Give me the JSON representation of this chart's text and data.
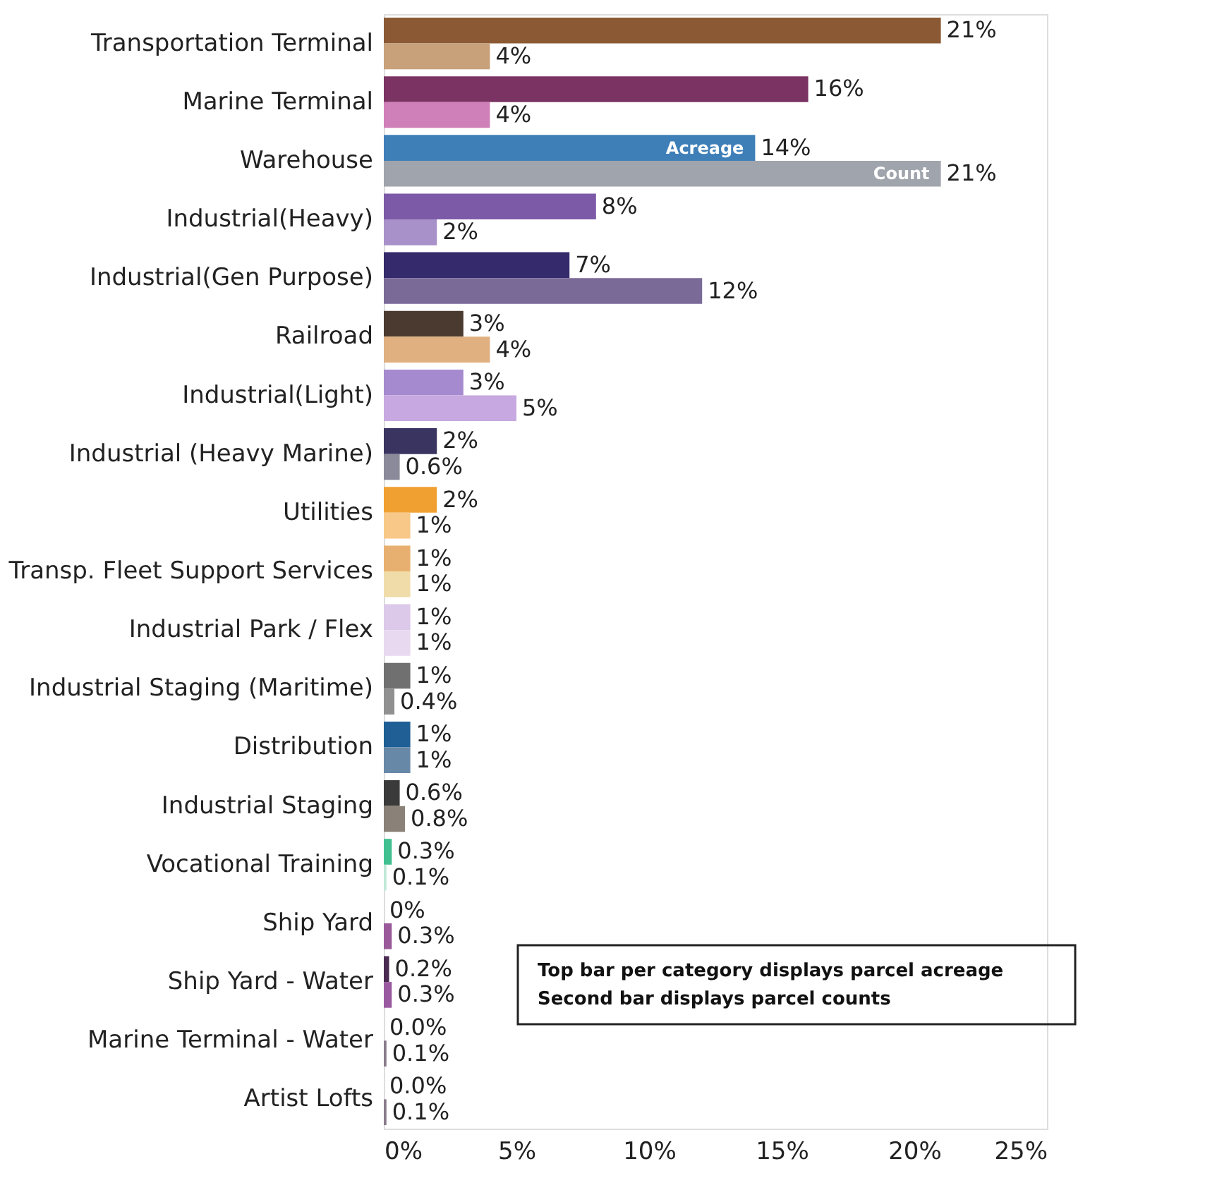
{
  "chart_data": {
    "type": "bar",
    "orientation": "horizontal",
    "categories": [
      "Transportation Terminal",
      "Marine Terminal",
      "Warehouse",
      "Industrial(Heavy)",
      "Industrial(Gen Purpose)",
      "Railroad",
      "Industrial(Light)",
      "Industrial (Heavy Marine)",
      "Utilities",
      "Transp. Fleet Support Services",
      "Industrial Park / Flex",
      "Industrial Staging (Maritime)",
      "Distribution",
      "Industrial Staging",
      "Vocational Training",
      "Ship Yard",
      "Ship Yard - Water",
      "Marine Terminal - Water",
      "Artist Lofts"
    ],
    "series": [
      {
        "name": "Acreage",
        "values": [
          21,
          16,
          14,
          8,
          7,
          3,
          3,
          2,
          2,
          1,
          1,
          1,
          1,
          0.6,
          0.3,
          0,
          0.2,
          0.0,
          0.0
        ],
        "value_labels": [
          "21%",
          "16%",
          "14%",
          "8%",
          "7%",
          "3%",
          "3%",
          "2%",
          "2%",
          "1%",
          "1%",
          "1%",
          "1%",
          "0.6%",
          "0.3%",
          "0%",
          "0.2%",
          "0.0%",
          "0.0%"
        ],
        "colors": [
          "#8b5a34",
          "#7a3363",
          "#3f7fb8",
          "#7c5aa8",
          "#352a6b",
          "#4a3a30",
          "#a58ad0",
          "#3a3560",
          "#f0a030",
          "#e8b070",
          "#dcc8e8",
          "#707070",
          "#1f5f95",
          "#3a3a3a",
          "#40c090",
          "#4a2a40",
          "#4a2a50",
          "#b0b0b0",
          "#b8b8b8"
        ]
      },
      {
        "name": "Count",
        "values": [
          4,
          4,
          21,
          2,
          12,
          4,
          5,
          0.6,
          1,
          1,
          1,
          0.4,
          1,
          0.8,
          0.1,
          0.3,
          0.3,
          0.1,
          0.1
        ],
        "value_labels": [
          "4%",
          "4%",
          "21%",
          "2%",
          "12%",
          "4%",
          "5%",
          "0.6%",
          "1%",
          "1%",
          "1%",
          "0.4%",
          "1%",
          "0.8%",
          "0.1%",
          "0.3%",
          "0.3%",
          "0.1%",
          "0.1%"
        ],
        "colors": [
          "#c8a07a",
          "#d080b8",
          "#a0a4ac",
          "#a890c8",
          "#7a6a98",
          "#e0b080",
          "#c8a8e0",
          "#8a8a9a",
          "#f8c888",
          "#f0dca8",
          "#e8d8f0",
          "#909090",
          "#6888a8",
          "#8a8278",
          "#c0e8d8",
          "#9a5a9a",
          "#9a5aa0",
          "#8a7a8a",
          "#8a7a8a"
        ]
      }
    ],
    "xlim": [
      0,
      25
    ],
    "xticks": [
      {
        "value": 0,
        "label": "0%"
      },
      {
        "value": 5,
        "label": "5%"
      },
      {
        "value": 10,
        "label": "10%"
      },
      {
        "value": 15,
        "label": "15%"
      },
      {
        "value": 20,
        "label": "20%"
      },
      {
        "value": 25,
        "label": "25%"
      }
    ],
    "annotations": [
      "Top bar per category displays parcel acreage",
      "Second bar displays parcel counts"
    ],
    "grid": false,
    "legend": false
  }
}
